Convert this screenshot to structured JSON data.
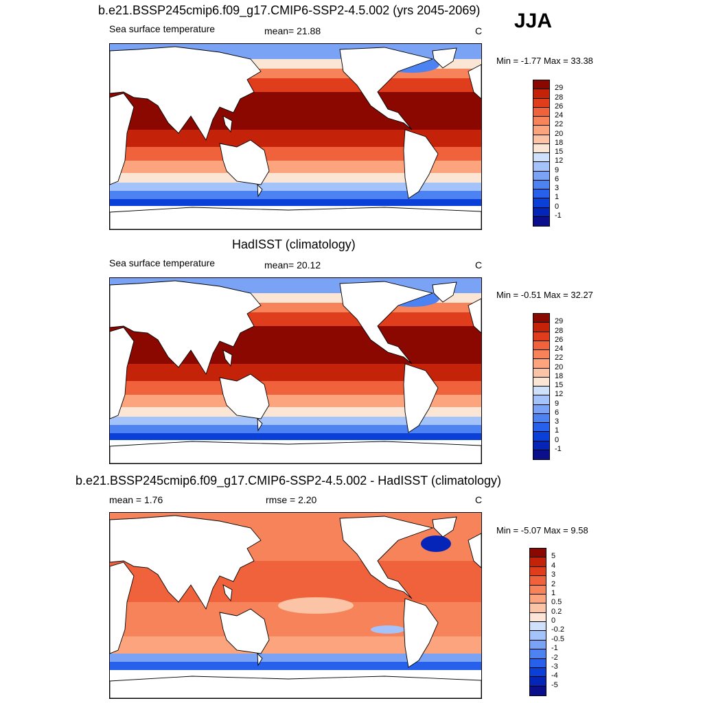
{
  "season": "JJA",
  "palettes": {
    "sst": [
      "#0b0f8c",
      "#0524b8",
      "#0b40d8",
      "#2761eb",
      "#4d82f2",
      "#7aa3f5",
      "#a5c3fb",
      "#cfe0fb",
      "#fbe5d4",
      "#fcc4a6",
      "#fba47d",
      "#f7835a",
      "#f0623b",
      "#e03d1d",
      "#c42309",
      "#8b0800"
    ],
    "diff": [
      "#0b0f8c",
      "#0524b8",
      "#0b40d8",
      "#2761eb",
      "#4d82f2",
      "#7aa3f5",
      "#a5c3fb",
      "#cfe0fb",
      "#fde6d8",
      "#fcc4a6",
      "#fba47d",
      "#f7835a",
      "#f0623b",
      "#e03d1d",
      "#c42309",
      "#8b0800"
    ]
  },
  "panels": [
    {
      "title": "b.e21.BSSP245cmip6.f09_g17.CMIP6-SSP2-4.5.002 (yrs 2045-2069)",
      "left_label": "Sea surface temperature",
      "mid_label": "mean=  21.88",
      "unit": "C",
      "minmax": "Min =  -1.77 Max =  33.38",
      "ticks": [
        "29",
        "28",
        "26",
        "24",
        "22",
        "20",
        "18",
        "15",
        "12",
        "9",
        "6",
        "3",
        "1",
        "0",
        "-1"
      ],
      "kind": "sst"
    },
    {
      "title": "HadISST (climatology)",
      "left_label": "Sea surface temperature",
      "mid_label": "mean=  20.12",
      "unit": "C",
      "minmax": "Min =  -0.51 Max =  32.27",
      "ticks": [
        "29",
        "28",
        "26",
        "24",
        "22",
        "20",
        "18",
        "15",
        "12",
        "9",
        "6",
        "3",
        "1",
        "0",
        "-1"
      ],
      "kind": "sst"
    },
    {
      "title": "b.e21.BSSP245cmip6.f09_g17.CMIP6-SSP2-4.5.002 - HadISST (climatology)",
      "left_label": "mean =   1.76",
      "mid_label": "rmse =   2.20",
      "unit": "C",
      "minmax": "Min =  -5.07 Max =   9.58",
      "ticks": [
        "5",
        "4",
        "3",
        "2",
        "1",
        "0.5",
        "0.2",
        "0",
        "-0.2",
        "-0.5",
        "-1",
        "-2",
        "-3",
        "-4",
        "-5"
      ],
      "kind": "diff"
    }
  ]
}
